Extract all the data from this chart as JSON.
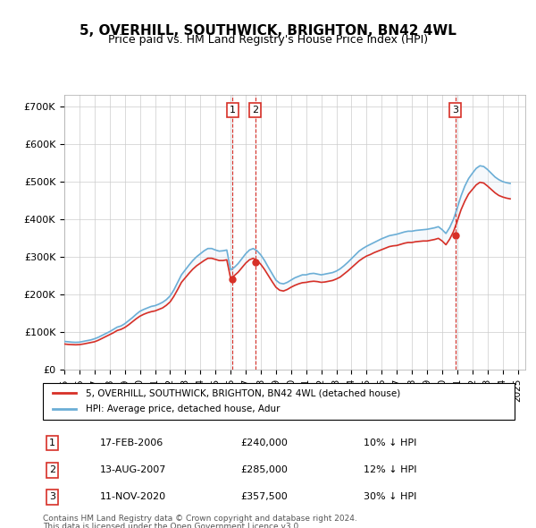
{
  "title": "5, OVERHILL, SOUTHWICK, BRIGHTON, BN42 4WL",
  "subtitle": "Price paid vs. HM Land Registry's House Price Index (HPI)",
  "ylabel_ticks": [
    "£0",
    "£100K",
    "£200K",
    "£300K",
    "£400K",
    "£500K",
    "£600K",
    "£700K"
  ],
  "ytick_values": [
    0,
    100000,
    200000,
    300000,
    400000,
    500000,
    600000,
    700000
  ],
  "ylim": [
    0,
    730000
  ],
  "xlim_start": 1995.0,
  "xlim_end": 2025.5,
  "hpi_color": "#6baed6",
  "price_color": "#d73027",
  "transaction_color": "#d73027",
  "vline_color": "#d73027",
  "vfill_color": "#deebf7",
  "background_color": "#ffffff",
  "grid_color": "#cccccc",
  "legend_label_price": "5, OVERHILL, SOUTHWICK, BRIGHTON, BN42 4WL (detached house)",
  "legend_label_hpi": "HPI: Average price, detached house, Adur",
  "transactions": [
    {
      "num": 1,
      "date_str": "17-FEB-2006",
      "price_str": "£240,000",
      "pct_str": "10% ↓ HPI",
      "year": 2006.13,
      "price": 240000
    },
    {
      "num": 2,
      "date_str": "13-AUG-2007",
      "price_str": "£285,000",
      "pct_str": "12% ↓ HPI",
      "year": 2007.62,
      "price": 285000
    },
    {
      "num": 3,
      "date_str": "11-NOV-2020",
      "price_str": "£357,500",
      "pct_str": "30% ↓ HPI",
      "year": 2020.87,
      "price": 357500
    }
  ],
  "footer_line1": "Contains HM Land Registry data © Crown copyright and database right 2024.",
  "footer_line2": "This data is licensed under the Open Government Licence v3.0.",
  "hpi_data": {
    "years": [
      1995.0,
      1995.25,
      1995.5,
      1995.75,
      1996.0,
      1996.25,
      1996.5,
      1996.75,
      1997.0,
      1997.25,
      1997.5,
      1997.75,
      1998.0,
      1998.25,
      1998.5,
      1998.75,
      1999.0,
      1999.25,
      1999.5,
      1999.75,
      2000.0,
      2000.25,
      2000.5,
      2000.75,
      2001.0,
      2001.25,
      2001.5,
      2001.75,
      2002.0,
      2002.25,
      2002.5,
      2002.75,
      2003.0,
      2003.25,
      2003.5,
      2003.75,
      2004.0,
      2004.25,
      2004.5,
      2004.75,
      2005.0,
      2005.25,
      2005.5,
      2005.75,
      2006.0,
      2006.25,
      2006.5,
      2006.75,
      2007.0,
      2007.25,
      2007.5,
      2007.75,
      2008.0,
      2008.25,
      2008.5,
      2008.75,
      2009.0,
      2009.25,
      2009.5,
      2009.75,
      2010.0,
      2010.25,
      2010.5,
      2010.75,
      2011.0,
      2011.25,
      2011.5,
      2011.75,
      2012.0,
      2012.25,
      2012.5,
      2012.75,
      2013.0,
      2013.25,
      2013.5,
      2013.75,
      2014.0,
      2014.25,
      2014.5,
      2014.75,
      2015.0,
      2015.25,
      2015.5,
      2015.75,
      2016.0,
      2016.25,
      2016.5,
      2016.75,
      2017.0,
      2017.25,
      2017.5,
      2017.75,
      2018.0,
      2018.25,
      2018.5,
      2018.75,
      2019.0,
      2019.25,
      2019.5,
      2019.75,
      2020.0,
      2020.25,
      2020.5,
      2020.75,
      2021.0,
      2021.25,
      2021.5,
      2021.75,
      2022.0,
      2022.25,
      2022.5,
      2022.75,
      2023.0,
      2023.25,
      2023.5,
      2023.75,
      2024.0,
      2024.25,
      2024.5
    ],
    "values": [
      75000,
      74000,
      73000,
      72500,
      73000,
      75000,
      77000,
      79000,
      82000,
      86000,
      91000,
      96000,
      101000,
      107000,
      113000,
      116000,
      122000,
      130000,
      138000,
      147000,
      155000,
      160000,
      164000,
      168000,
      170000,
      174000,
      179000,
      186000,
      196000,
      212000,
      232000,
      252000,
      265000,
      278000,
      290000,
      300000,
      308000,
      316000,
      322000,
      322000,
      318000,
      315000,
      316000,
      318000,
      265000,
      272000,
      282000,
      295000,
      308000,
      318000,
      322000,
      316000,
      305000,
      290000,
      272000,
      255000,
      238000,
      230000,
      228000,
      232000,
      238000,
      244000,
      248000,
      252000,
      252000,
      255000,
      256000,
      254000,
      252000,
      254000,
      256000,
      258000,
      262000,
      268000,
      276000,
      285000,
      295000,
      305000,
      315000,
      322000,
      328000,
      333000,
      338000,
      343000,
      348000,
      352000,
      356000,
      358000,
      360000,
      363000,
      366000,
      368000,
      368000,
      370000,
      371000,
      372000,
      373000,
      375000,
      377000,
      380000,
      372000,
      362000,
      378000,
      400000,
      430000,
      462000,
      488000,
      508000,
      522000,
      535000,
      542000,
      540000,
      532000,
      522000,
      512000,
      505000,
      500000,
      497000,
      495000
    ]
  },
  "price_data": {
    "years": [
      1995.0,
      1995.25,
      1995.5,
      1995.75,
      1996.0,
      1996.25,
      1996.5,
      1996.75,
      1997.0,
      1997.25,
      1997.5,
      1997.75,
      1998.0,
      1998.25,
      1998.5,
      1998.75,
      1999.0,
      1999.25,
      1999.5,
      1999.75,
      2000.0,
      2000.25,
      2000.5,
      2000.75,
      2001.0,
      2001.25,
      2001.5,
      2001.75,
      2002.0,
      2002.25,
      2002.5,
      2002.75,
      2003.0,
      2003.25,
      2003.5,
      2003.75,
      2004.0,
      2004.25,
      2004.5,
      2004.75,
      2005.0,
      2005.25,
      2005.5,
      2005.75,
      2006.0,
      2006.25,
      2006.5,
      2006.75,
      2007.0,
      2007.25,
      2007.5,
      2007.75,
      2008.0,
      2008.25,
      2008.5,
      2008.75,
      2009.0,
      2009.25,
      2009.5,
      2009.75,
      2010.0,
      2010.25,
      2010.5,
      2010.75,
      2011.0,
      2011.25,
      2011.5,
      2011.75,
      2012.0,
      2012.25,
      2012.5,
      2012.75,
      2013.0,
      2013.25,
      2013.5,
      2013.75,
      2014.0,
      2014.25,
      2014.5,
      2014.75,
      2015.0,
      2015.25,
      2015.5,
      2015.75,
      2016.0,
      2016.25,
      2016.5,
      2016.75,
      2017.0,
      2017.25,
      2017.5,
      2017.75,
      2018.0,
      2018.25,
      2018.5,
      2018.75,
      2019.0,
      2019.25,
      2019.5,
      2019.75,
      2020.0,
      2020.25,
      2020.5,
      2020.75,
      2021.0,
      2021.25,
      2021.5,
      2021.75,
      2022.0,
      2022.25,
      2022.5,
      2022.75,
      2023.0,
      2023.25,
      2023.5,
      2023.75,
      2024.0,
      2024.25,
      2024.5
    ],
    "values": [
      68000,
      67000,
      66500,
      66000,
      66500,
      68000,
      70000,
      72000,
      74000,
      78000,
      83000,
      88000,
      93000,
      98000,
      104000,
      107000,
      112000,
      119000,
      127000,
      135000,
      142000,
      147000,
      151000,
      154000,
      156000,
      160000,
      164000,
      171000,
      180000,
      195000,
      213000,
      232000,
      244000,
      256000,
      267000,
      276000,
      283000,
      290000,
      296000,
      296000,
      293000,
      290000,
      290000,
      292000,
      243000,
      250000,
      259000,
      271000,
      283000,
      292000,
      296000,
      290000,
      280000,
      266000,
      250000,
      234000,
      219000,
      211000,
      209000,
      213000,
      219000,
      224000,
      228000,
      231000,
      232000,
      234000,
      235000,
      234000,
      232000,
      233000,
      235000,
      237000,
      241000,
      246000,
      254000,
      262000,
      271000,
      280000,
      289000,
      296000,
      302000,
      306000,
      311000,
      315000,
      319000,
      323000,
      327000,
      329000,
      330000,
      333000,
      336000,
      338000,
      338000,
      340000,
      341000,
      342000,
      342000,
      344000,
      346000,
      349000,
      342000,
      332000,
      347000,
      367000,
      395000,
      425000,
      448000,
      467000,
      479000,
      491000,
      498000,
      496000,
      488000,
      479000,
      470000,
      463000,
      459000,
      456000,
      454000
    ]
  }
}
